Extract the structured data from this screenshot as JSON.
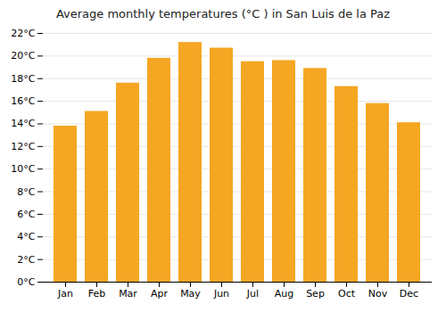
{
  "chart_data": {
    "type": "bar",
    "title": "Average monthly temperatures (°C ) in San Luis de la Paz",
    "categories": [
      "Jan",
      "Feb",
      "Mar",
      "Apr",
      "May",
      "Jun",
      "Jul",
      "Aug",
      "Sep",
      "Oct",
      "Nov",
      "Dec"
    ],
    "values": [
      13.8,
      15.1,
      17.6,
      19.8,
      21.2,
      20.7,
      19.5,
      19.6,
      18.9,
      17.3,
      15.8,
      14.1
    ],
    "color": "#F5A623",
    "ylim": [
      0,
      22
    ],
    "yticks": [
      {
        "value": 0,
        "label": "0°C"
      },
      {
        "value": 2,
        "label": "2°C"
      },
      {
        "value": 4,
        "label": "4°C"
      },
      {
        "value": 6,
        "label": "6°C"
      },
      {
        "value": 8,
        "label": "8°C"
      },
      {
        "value": 10,
        "label": "10°C"
      },
      {
        "value": 12,
        "label": "12°C"
      },
      {
        "value": 14,
        "label": "14°C"
      },
      {
        "value": 16,
        "label": "16°C"
      },
      {
        "value": 18,
        "label": "18°C"
      },
      {
        "value": 20,
        "label": "20°C"
      },
      {
        "value": 22,
        "label": "22°C"
      }
    ],
    "grid": true
  }
}
